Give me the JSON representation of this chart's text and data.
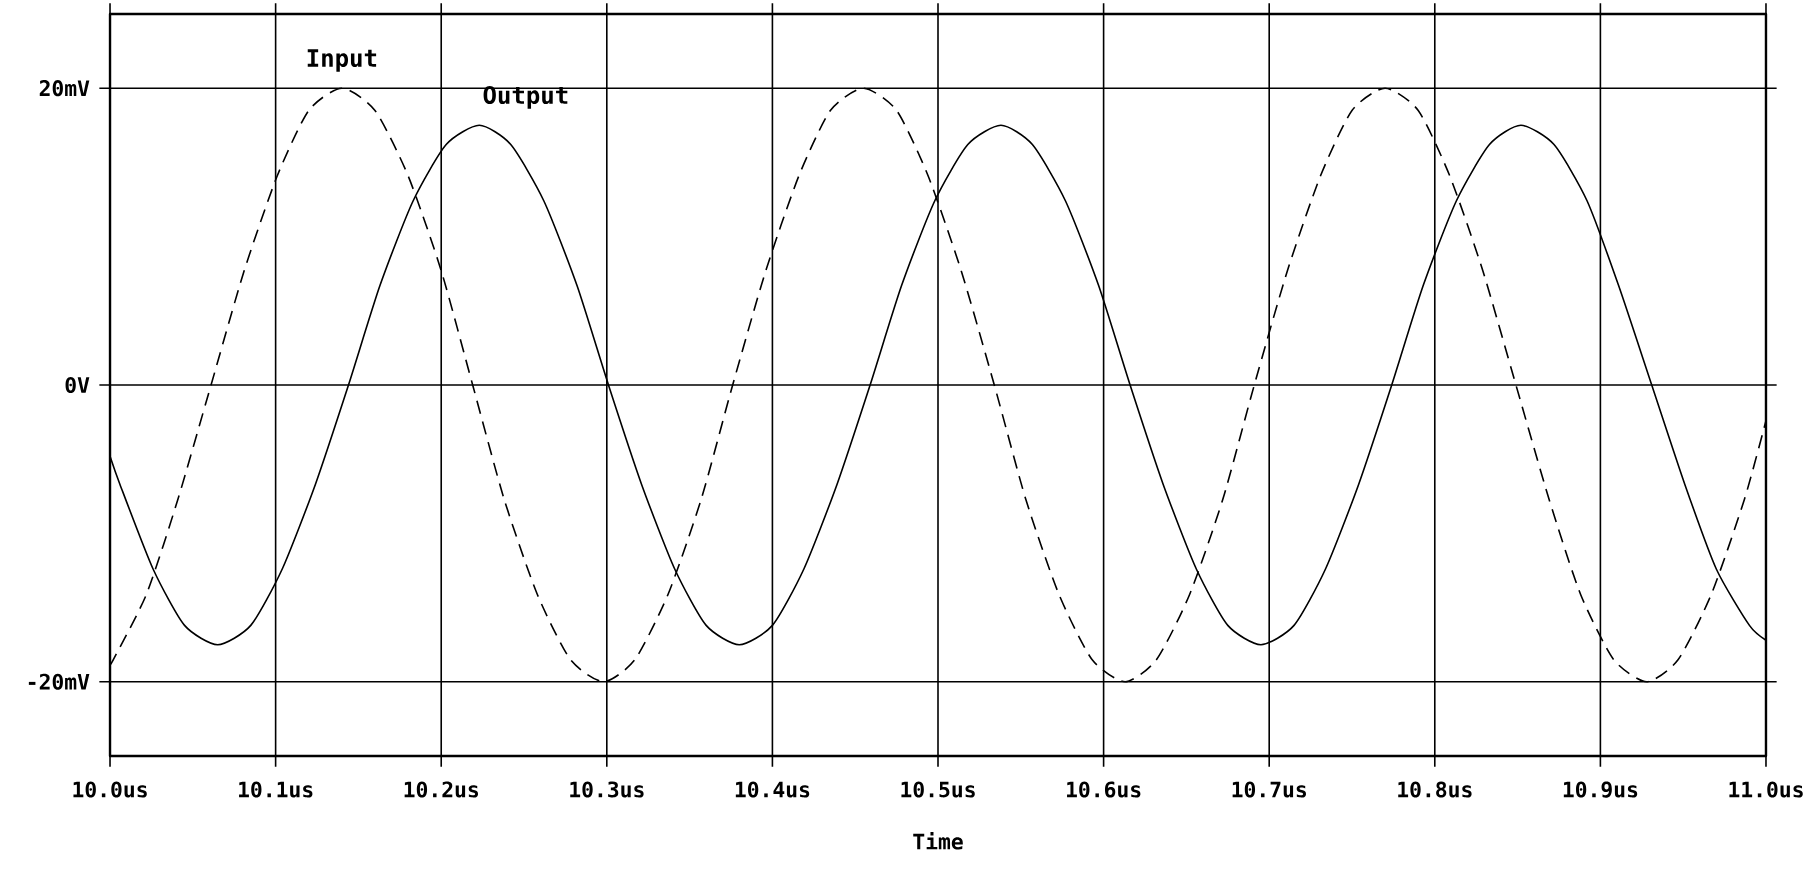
{
  "chart_data": {
    "type": "line",
    "xlabel": "Time",
    "xlim": [
      10.0,
      11.0
    ],
    "xticks": [
      {
        "value": 10.0,
        "label": "10.0us"
      },
      {
        "value": 10.1,
        "label": "10.1us"
      },
      {
        "value": 10.2,
        "label": "10.2us"
      },
      {
        "value": 10.3,
        "label": "10.3us"
      },
      {
        "value": 10.4,
        "label": "10.4us"
      },
      {
        "value": 10.5,
        "label": "10.5us"
      },
      {
        "value": 10.6,
        "label": "10.6us"
      },
      {
        "value": 10.7,
        "label": "10.7us"
      },
      {
        "value": 10.8,
        "label": "10.8us"
      },
      {
        "value": 10.9,
        "label": "10.9us"
      },
      {
        "value": 11.0,
        "label": "11.0us"
      }
    ],
    "ylim": [
      -25,
      25
    ],
    "yticks": [
      {
        "value": -20,
        "label": "-20mV"
      },
      {
        "value": 0,
        "label": "0V"
      },
      {
        "value": 20,
        "label": "20mV"
      }
    ],
    "grid": true,
    "legend": false,
    "marker": "none",
    "series": [
      {
        "name": "Input",
        "color": "#000000",
        "line_style": "dashed",
        "x": [
          10.0,
          10.002,
          10.022,
          10.041,
          10.061,
          10.081,
          10.101,
          10.12,
          10.14,
          10.16,
          10.18,
          10.2,
          10.219,
          10.238,
          10.258,
          10.278,
          10.298,
          10.317,
          10.337,
          10.357,
          10.376,
          10.396,
          10.416,
          10.435,
          10.455,
          10.475,
          10.494,
          10.514,
          10.534,
          10.553,
          10.573,
          10.593,
          10.613,
          10.632,
          10.652,
          10.672,
          10.691,
          10.711,
          10.731,
          10.75,
          10.77,
          10.79,
          10.809,
          10.829,
          10.849,
          10.869,
          10.888,
          10.908,
          10.928,
          10.947,
          10.967,
          10.987,
          11.0
        ],
        "values": [
          -18.8,
          -18.5,
          -14.1,
          -7.7,
          0,
          7.7,
          14.1,
          18.5,
          20,
          18.5,
          14.1,
          7.7,
          0,
          -7.7,
          -14.1,
          -18.5,
          -20,
          -18.5,
          -14.1,
          -7.7,
          0,
          7.7,
          14.1,
          18.5,
          20,
          18.5,
          14.1,
          7.7,
          0,
          -7.7,
          -14.1,
          -18.5,
          -20,
          -18.5,
          -14.1,
          -7.7,
          0,
          7.7,
          14.1,
          18.5,
          20,
          18.5,
          14.1,
          7.7,
          0,
          -7.7,
          -14.1,
          -18.5,
          -20,
          -18.5,
          -14.1,
          -7.7,
          -2.4
        ]
      },
      {
        "name": "Output",
        "color": "#000000",
        "line_style": "solid",
        "x": [
          10.0,
          10.006,
          10.026,
          10.045,
          10.065,
          10.085,
          10.104,
          10.124,
          10.144,
          10.163,
          10.183,
          10.203,
          10.223,
          10.242,
          10.262,
          10.282,
          10.301,
          10.321,
          10.341,
          10.36,
          10.38,
          10.4,
          10.419,
          10.439,
          10.459,
          10.478,
          10.498,
          10.518,
          10.538,
          10.557,
          10.577,
          10.597,
          10.616,
          10.636,
          10.656,
          10.675,
          10.695,
          10.715,
          10.734,
          10.754,
          10.774,
          10.793,
          10.813,
          10.833,
          10.852,
          10.872,
          10.892,
          10.911,
          10.931,
          10.951,
          10.97,
          10.99,
          11.0
        ],
        "values": [
          -4.8,
          -6.7,
          -12.4,
          -16.2,
          -17.5,
          -16.2,
          -12.4,
          -6.7,
          0,
          6.7,
          12.4,
          16.2,
          17.5,
          16.2,
          12.4,
          6.7,
          0,
          -6.7,
          -12.4,
          -16.2,
          -17.5,
          -16.2,
          -12.4,
          -6.7,
          0,
          6.7,
          12.4,
          16.2,
          17.5,
          16.2,
          12.4,
          6.7,
          0,
          -6.7,
          -12.4,
          -16.2,
          -17.5,
          -16.2,
          -12.4,
          -6.7,
          0,
          6.7,
          12.4,
          16.2,
          17.5,
          16.2,
          12.4,
          6.7,
          0,
          -6.7,
          -12.4,
          -16.2,
          -17.2
        ]
      }
    ]
  }
}
